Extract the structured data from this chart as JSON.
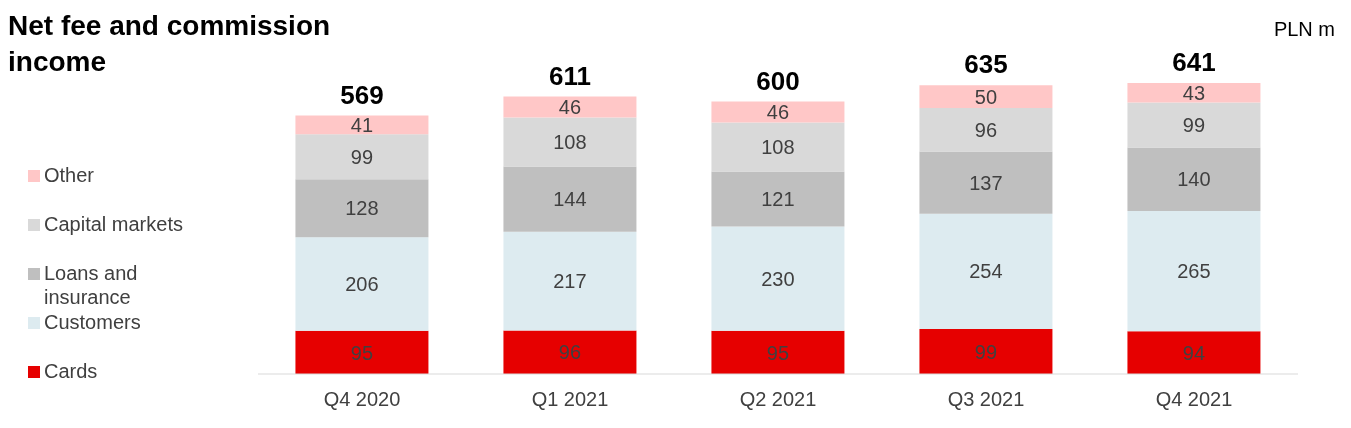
{
  "chart_data": {
    "type": "bar",
    "title": "Net fee and commission income",
    "annotations": [
      "PLN m"
    ],
    "categories": [
      "Q4 2020",
      "Q1 2021",
      "Q2 2021",
      "Q3 2021",
      "Q4 2021"
    ],
    "stacked": true,
    "data_labels": true,
    "totals": [
      "569",
      "611",
      "600",
      "635",
      "641"
    ],
    "legend": "left",
    "series": [
      {
        "name": "Cards",
        "color": "#e60000",
        "values": [
          95,
          96,
          95,
          99,
          94
        ]
      },
      {
        "name": "Customers",
        "color": "#ddebf0",
        "values": [
          206,
          217,
          230,
          254,
          265
        ]
      },
      {
        "name": "Loans and insurance",
        "color": "#bfbfbf",
        "values": [
          128,
          144,
          121,
          137,
          140
        ]
      },
      {
        "name": "Capital markets",
        "color": "#d9d9d9",
        "values": [
          99,
          108,
          108,
          96,
          99
        ]
      },
      {
        "name": "Other",
        "color": "#ffc7c7",
        "values": [
          41,
          46,
          46,
          50,
          43
        ]
      }
    ]
  }
}
